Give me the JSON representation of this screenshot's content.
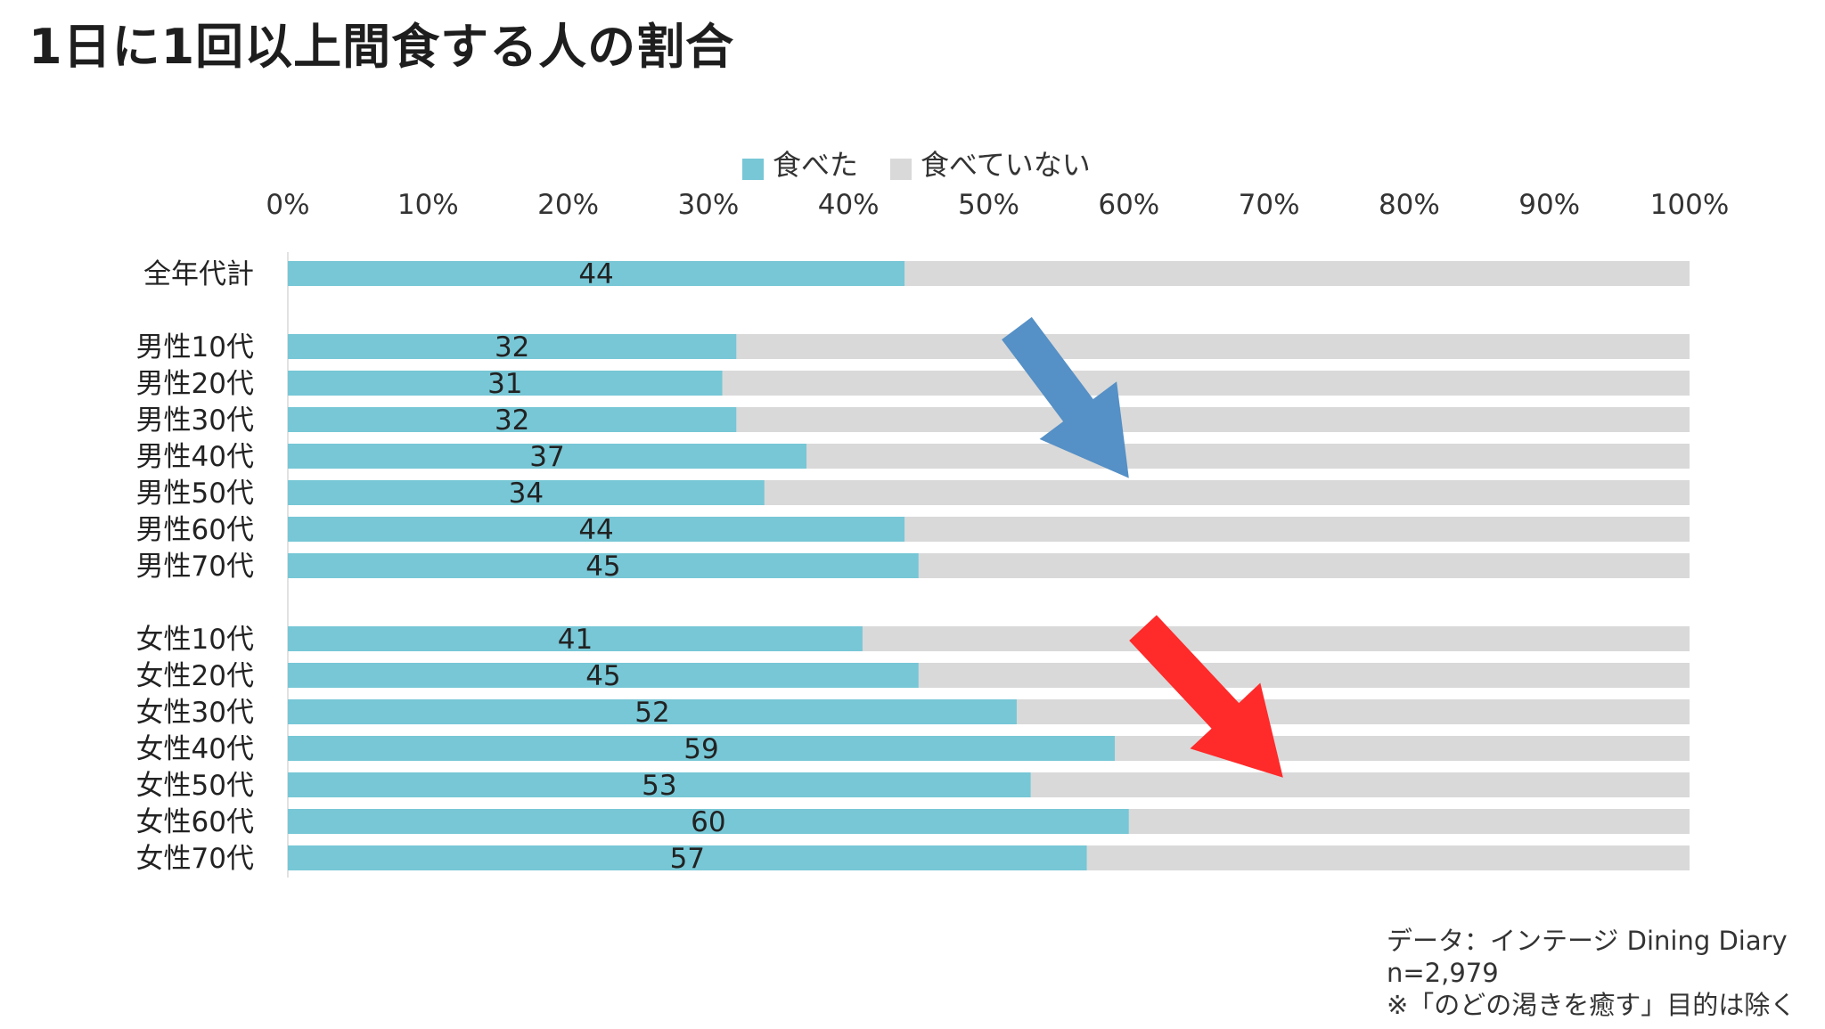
{
  "title": "1日に1回以上間食する人の割合",
  "chart_data": {
    "type": "bar",
    "orientation": "horizontal",
    "stacked": true,
    "percent_stacked": true,
    "xlim": [
      0,
      100
    ],
    "x_ticks": [
      "0%",
      "10%",
      "20%",
      "30%",
      "40%",
      "50%",
      "60%",
      "70%",
      "80%",
      "90%",
      "100%"
    ],
    "legend_position": "top",
    "categories": [
      "全年代計",
      "",
      "男性10代",
      "男性20代",
      "男性30代",
      "男性40代",
      "男性50代",
      "男性60代",
      "男性70代",
      "",
      "女性10代",
      "女性20代",
      "女性30代",
      "女性40代",
      "女性50代",
      "女性60代",
      "女性70代"
    ],
    "series": [
      {
        "name": "食べた",
        "color": "#77c7d6",
        "values": [
          44,
          null,
          32,
          31,
          32,
          37,
          34,
          44,
          45,
          null,
          41,
          45,
          52,
          59,
          53,
          60,
          57
        ],
        "show_labels": true
      },
      {
        "name": "食べていない",
        "color": "#d9d9d9",
        "values": [
          56,
          null,
          68,
          69,
          68,
          63,
          66,
          56,
          55,
          null,
          59,
          55,
          48,
          41,
          47,
          40,
          43
        ],
        "show_labels": false
      }
    ],
    "annotations": [
      {
        "type": "arrow",
        "color": "#5590c6",
        "direction": "down-right",
        "from_value": 52,
        "to_value": 60,
        "near_group": "男性"
      },
      {
        "type": "arrow",
        "color": "#ff2a2a",
        "direction": "down-right",
        "from_value": 61,
        "to_value": 71,
        "near_group": "女性"
      }
    ]
  },
  "source": {
    "line1": "データ：インテージ Dining Diary",
    "line2": "n=2,979",
    "line3": "※「のどの渇きを癒す」目的は除く"
  }
}
